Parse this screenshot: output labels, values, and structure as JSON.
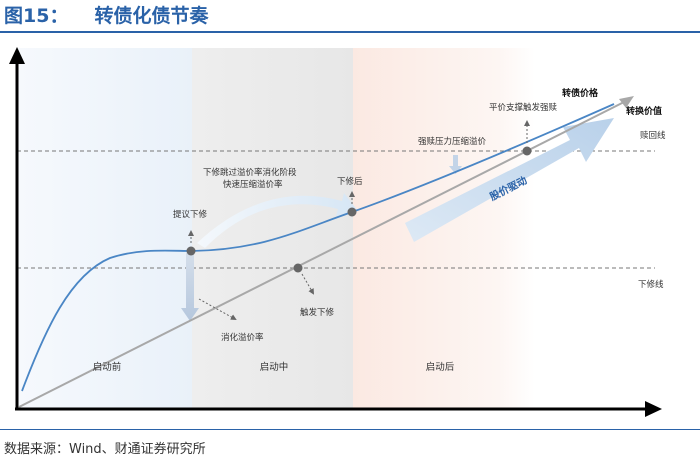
{
  "header": {
    "fig_label": "图15：",
    "title": "转债化债节奏"
  },
  "phases": {
    "pre": "启动前",
    "mid": "启动中",
    "post": "启动后"
  },
  "lines": {
    "cb_price": "转债价格",
    "conv_value": "转换价值",
    "put_line": "赎回线",
    "reset_line": "下修线",
    "stock_driven": "股价驱动"
  },
  "annotations": {
    "propose_reset": "提议下修",
    "skip_premium": [
      "下修跳过溢价率消化阶段",
      "快速压缩溢价率"
    ],
    "after_reset": "下修后",
    "digest_premium": "消化溢价率",
    "trigger_reset": "触发下修",
    "redeem_pressure": "强赎压力压缩溢价",
    "par_support": "平价支撑触发强赎"
  },
  "footer": {
    "source": "数据来源：Wind、财通证券研究所"
  },
  "colors": {
    "accent": "#2a62a8",
    "cb_curve": "#4a86c5",
    "pre_bg": "#eef4fa",
    "mid_bg": "#eeeeee",
    "post_bg": "#fdf1ec",
    "diag_line": "#aaaaaa"
  }
}
